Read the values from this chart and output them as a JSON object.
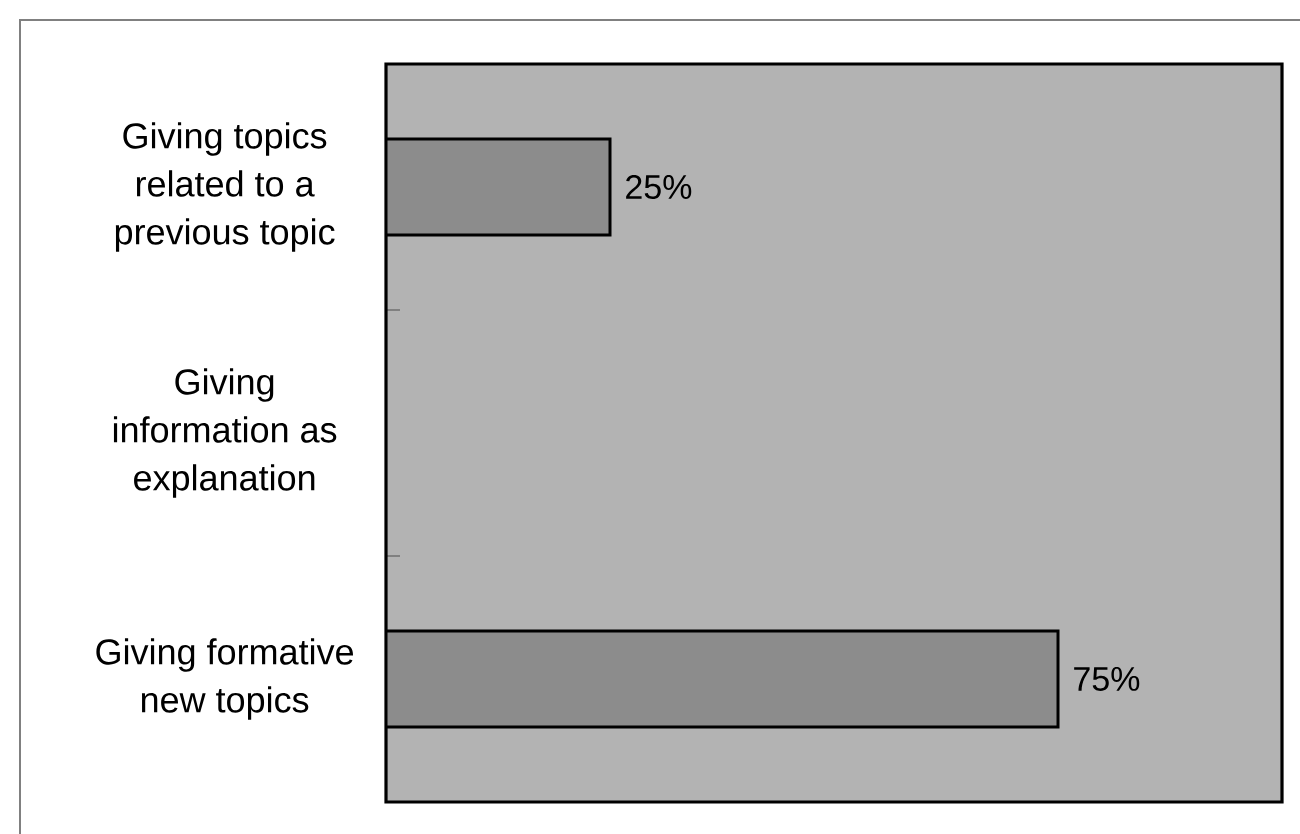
{
  "chart_data": {
    "type": "bar",
    "orientation": "horizontal",
    "categories": [
      "Giving topics related to a previous topic",
      "Giving information as explanation",
      "Giving formative new topics"
    ],
    "values": [
      25,
      null,
      75
    ],
    "value_labels": [
      "25%",
      null,
      "75%"
    ],
    "color": "#8c8c8c",
    "xlim": [
      0,
      100
    ],
    "tick_labels": "y"
  }
}
